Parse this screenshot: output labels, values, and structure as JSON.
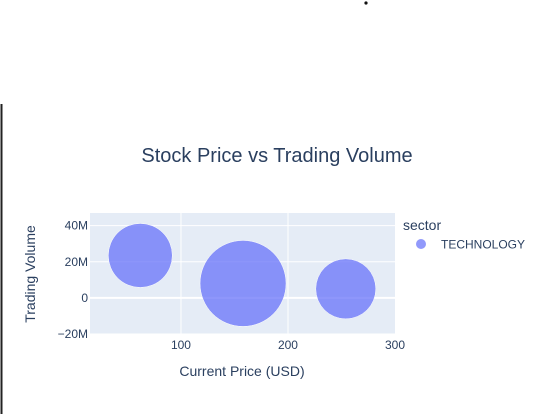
{
  "chart_data": {
    "type": "scatter",
    "title": "Stock Price vs Trading Volume",
    "xlabel": "Current Price (USD)",
    "ylabel": "Trading Volume",
    "xlim": [
      15,
      300
    ],
    "ylim": [
      -20000000,
      47000000
    ],
    "x_ticks": [
      {
        "value": 100,
        "label": "100"
      },
      {
        "value": 200,
        "label": "200"
      },
      {
        "value": 300,
        "label": "300"
      }
    ],
    "y_ticks": [
      {
        "value": 40000000,
        "label": "40M"
      },
      {
        "value": 20000000,
        "label": "20M"
      },
      {
        "value": 0,
        "label": "0"
      },
      {
        "value": -20000000,
        "label": "−20M"
      }
    ],
    "grid": true,
    "legend_title": "sector",
    "legend_position": "right",
    "series": [
      {
        "name": "TECHNOLOGY",
        "color": "#636efa",
        "points": [
          {
            "x": 62,
            "y": 23500000,
            "size": 32
          },
          {
            "x": 158,
            "y": 8000000,
            "size": 43
          },
          {
            "x": 254,
            "y": 5000000,
            "size": 30
          }
        ]
      }
    ]
  }
}
